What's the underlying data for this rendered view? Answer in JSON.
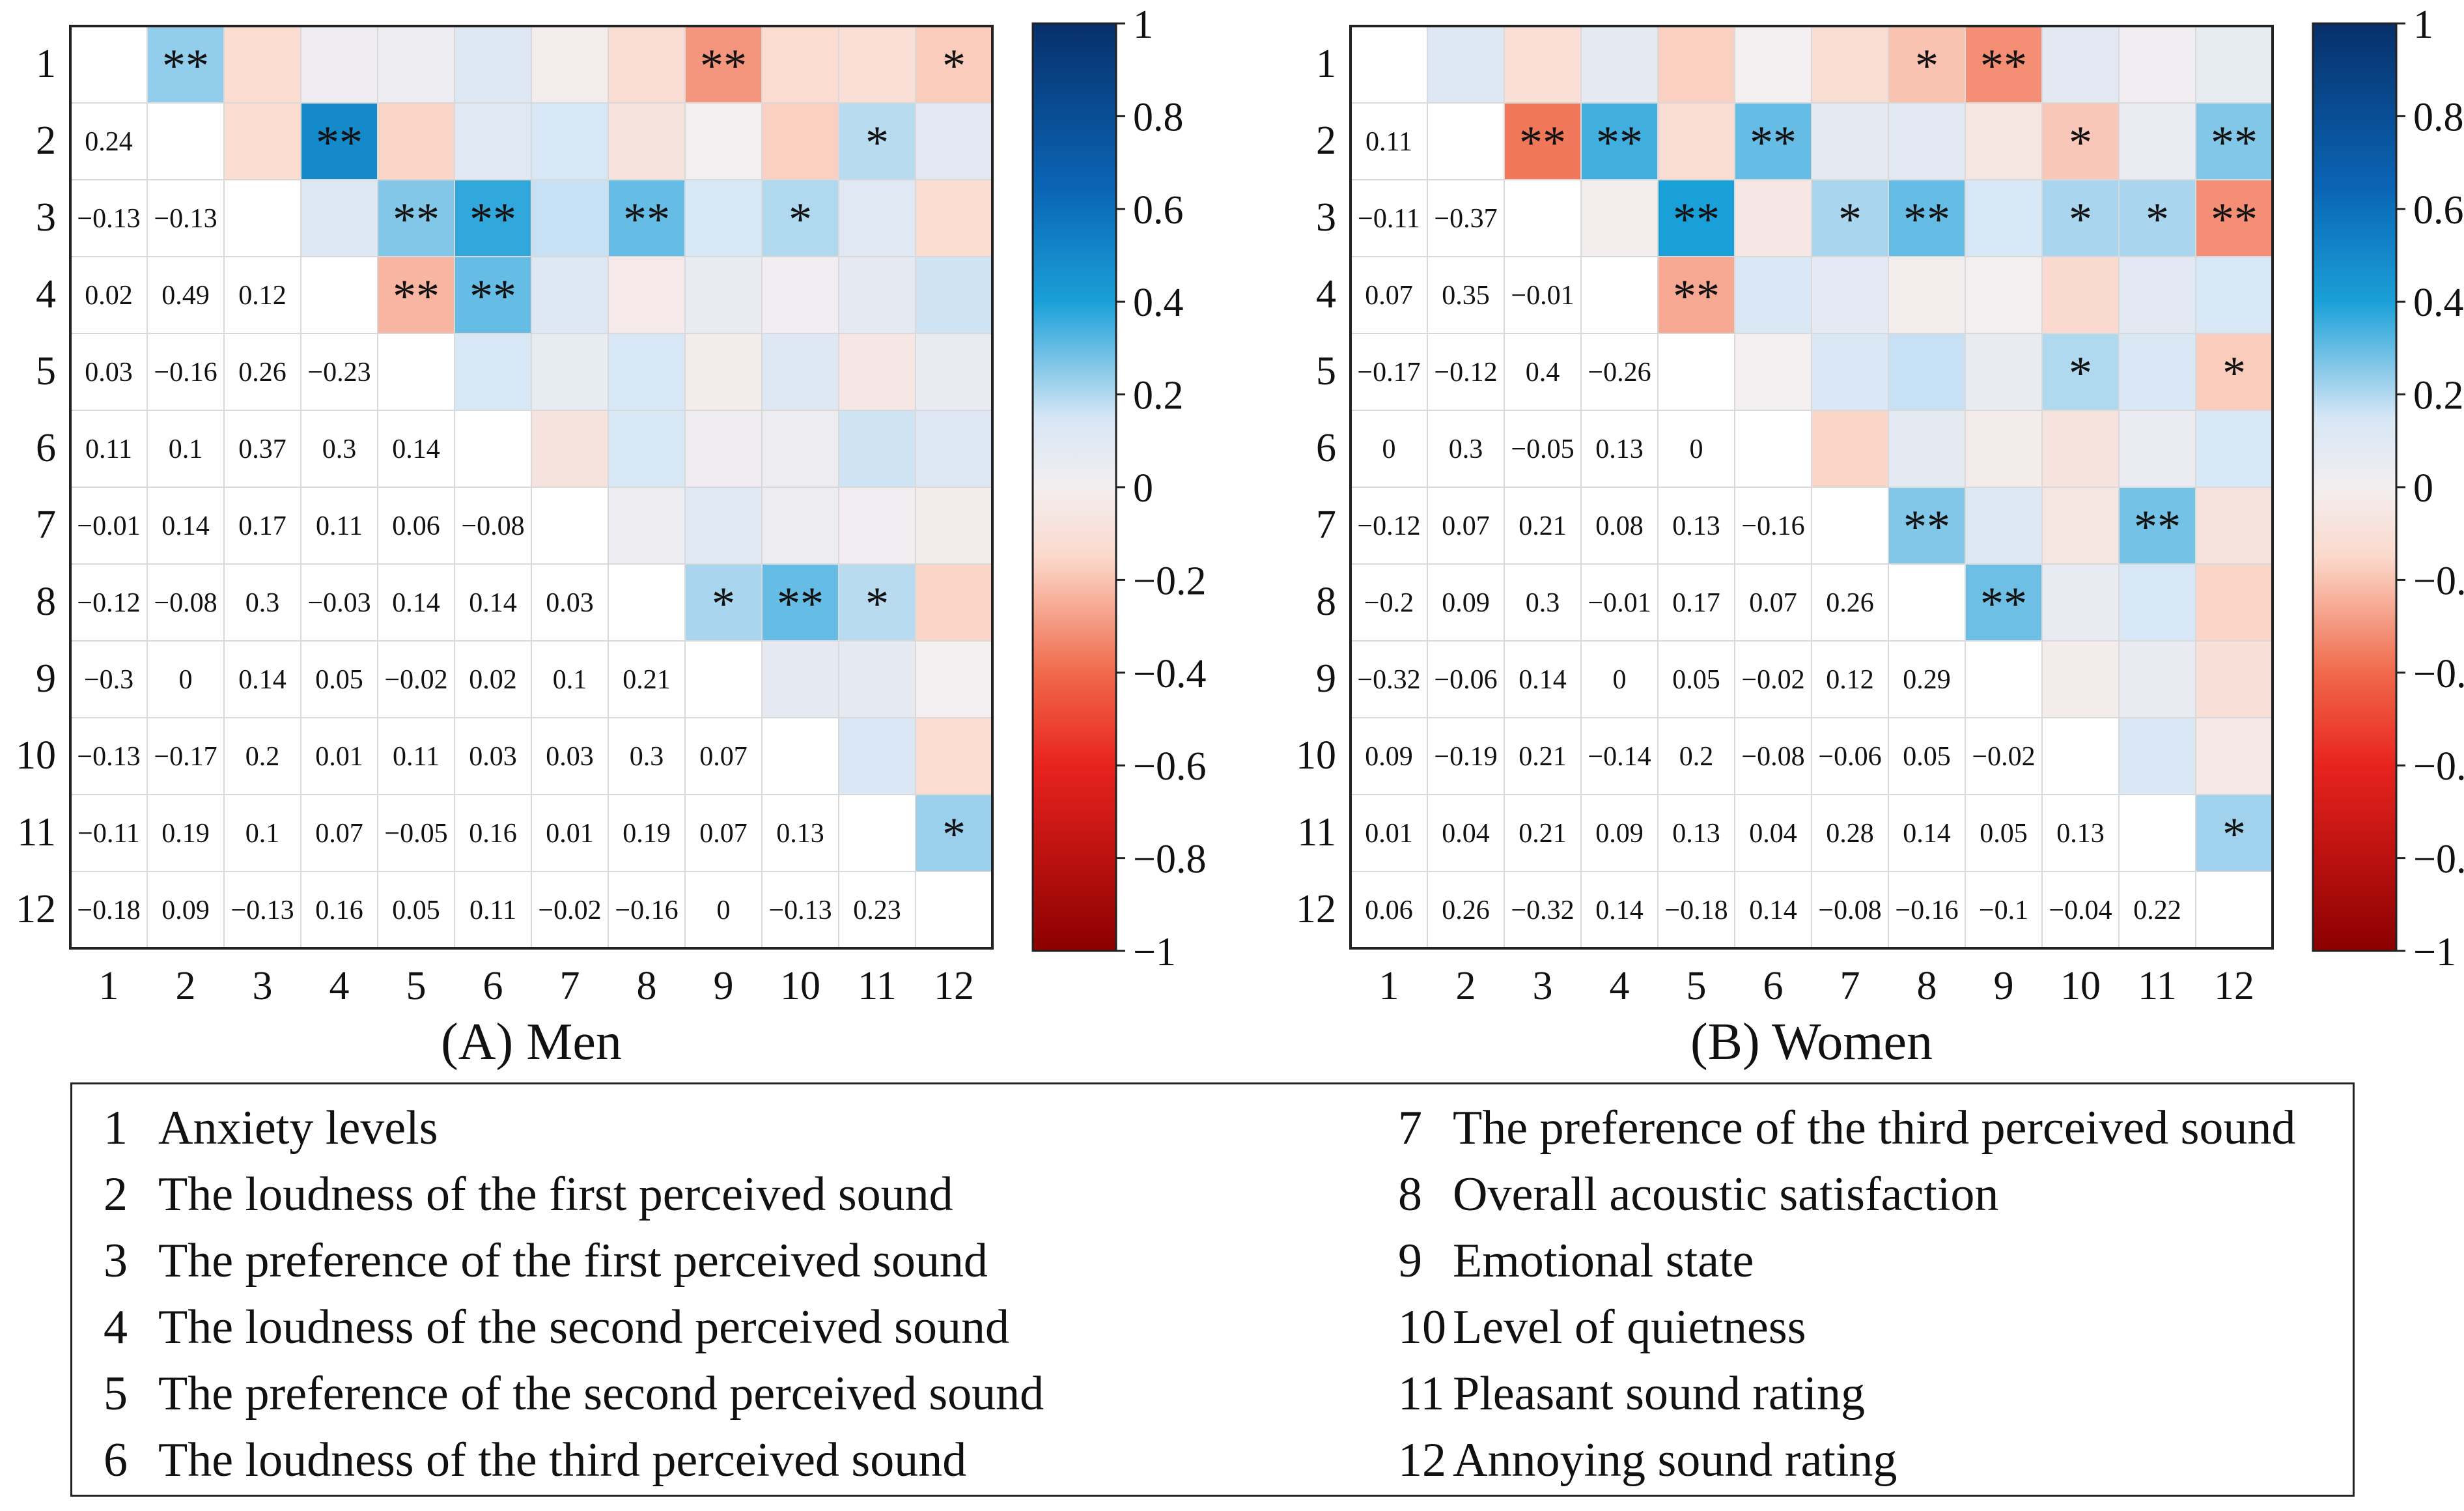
{
  "chart_data": [
    {
      "type": "heatmap",
      "title": "(A) Men",
      "labels": [
        "1",
        "2",
        "3",
        "4",
        "5",
        "6",
        "7",
        "8",
        "9",
        "10",
        "11",
        "12"
      ],
      "lower_triangle_values": [
        [],
        [
          "0.24"
        ],
        [
          "−0.13",
          "−0.13"
        ],
        [
          "0.02",
          "0.49",
          "0.12"
        ],
        [
          "0.03",
          "−0.16",
          "0.26",
          "−0.23"
        ],
        [
          "0.11",
          "0.1",
          "0.37",
          "0.3",
          "0.14"
        ],
        [
          "−0.01",
          "0.14",
          "0.17",
          "0.11",
          "0.06",
          "−0.08"
        ],
        [
          "−0.12",
          "−0.08",
          "0.3",
          "−0.03",
          "0.14",
          "0.14",
          "0.03"
        ],
        [
          "−0.3",
          "0",
          "0.14",
          "0.05",
          "−0.02",
          "0.02",
          "0.1",
          "0.21"
        ],
        [
          "−0.13",
          "−0.17",
          "0.2",
          "0.01",
          "0.11",
          "0.03",
          "0.03",
          "0.3",
          "0.07"
        ],
        [
          "−0.11",
          "0.19",
          "0.1",
          "0.07",
          "−0.05",
          "0.16",
          "0.01",
          "0.19",
          "0.07",
          "0.13"
        ],
        [
          "−0.18",
          "0.09",
          "−0.13",
          "0.16",
          "0.05",
          "0.11",
          "−0.02",
          "−0.16",
          "0",
          "−0.13",
          "0.23"
        ]
      ],
      "significance_upper": [
        [
          "",
          "**",
          "",
          "",
          "",
          "",
          "",
          "",
          "**",
          "",
          "",
          "*"
        ],
        [
          "",
          "",
          "",
          "**",
          "",
          "",
          "",
          "",
          "",
          "",
          "*",
          ""
        ],
        [
          "",
          "",
          "",
          "",
          "**",
          "**",
          "",
          "**",
          "",
          "*",
          "",
          ""
        ],
        [
          "",
          "",
          "",
          "",
          "**",
          "**",
          "",
          "",
          "",
          "",
          "",
          ""
        ],
        [
          "",
          "",
          "",
          "",
          "",
          "",
          "",
          "",
          "",
          "",
          "",
          ""
        ],
        [
          "",
          "",
          "",
          "",
          "",
          "",
          "",
          "",
          "",
          "",
          "",
          ""
        ],
        [
          "",
          "",
          "",
          "",
          "",
          "",
          "",
          "",
          "",
          "",
          "",
          ""
        ],
        [
          "",
          "",
          "",
          "",
          "",
          "",
          "",
          "",
          "*",
          "**",
          "*",
          ""
        ],
        [
          "",
          "",
          "",
          "",
          "",
          "",
          "",
          "",
          "",
          "",
          "",
          ""
        ],
        [
          "",
          "",
          "",
          "",
          "",
          "",
          "",
          "",
          "",
          "",
          "",
          ""
        ],
        [
          "",
          "",
          "",
          "",
          "",
          "",
          "",
          "",
          "",
          "",
          "",
          "*"
        ],
        [
          "",
          "",
          "",
          "",
          "",
          "",
          "",
          "",
          "",
          "",
          "",
          ""
        ]
      ]
    },
    {
      "type": "heatmap",
      "title": "(B) Women",
      "labels": [
        "1",
        "2",
        "3",
        "4",
        "5",
        "6",
        "7",
        "8",
        "9",
        "10",
        "11",
        "12"
      ],
      "lower_triangle_values": [
        [],
        [
          "0.11"
        ],
        [
          "−0.11",
          "−0.37"
        ],
        [
          "0.07",
          "0.35",
          "−0.01"
        ],
        [
          "−0.17",
          "−0.12",
          "0.4",
          "−0.26"
        ],
        [
          "0",
          "0.3",
          "−0.05",
          "0.13",
          "0"
        ],
        [
          "−0.12",
          "0.07",
          "0.21",
          "0.08",
          "0.13",
          "−0.16"
        ],
        [
          "−0.2",
          "0.09",
          "0.3",
          "−0.01",
          "0.17",
          "0.07",
          "0.26"
        ],
        [
          "−0.32",
          "−0.06",
          "0.14",
          "0",
          "0.05",
          "−0.02",
          "0.12",
          "0.29"
        ],
        [
          "0.09",
          "−0.19",
          "0.21",
          "−0.14",
          "0.2",
          "−0.08",
          "−0.06",
          "0.05",
          "−0.02"
        ],
        [
          "0.01",
          "0.04",
          "0.21",
          "0.09",
          "0.13",
          "0.04",
          "0.28",
          "0.14",
          "0.05",
          "0.13"
        ],
        [
          "0.06",
          "0.26",
          "−0.32",
          "0.14",
          "−0.18",
          "0.14",
          "−0.08",
          "−0.16",
          "−0.1",
          "−0.04",
          "0.22"
        ]
      ],
      "significance_upper": [
        [
          "",
          "",
          "",
          "",
          "",
          "",
          "",
          "*",
          "**",
          "",
          "",
          ""
        ],
        [
          "",
          "",
          "**",
          "**",
          "",
          "**",
          "",
          "",
          "",
          "*",
          "",
          "**"
        ],
        [
          "",
          "",
          "",
          "",
          "**",
          "",
          "*",
          "**",
          "",
          "*",
          "*",
          "**"
        ],
        [
          "",
          "",
          "",
          "",
          "**",
          "",
          "",
          "",
          "",
          "",
          "",
          ""
        ],
        [
          "",
          "",
          "",
          "",
          "",
          "",
          "",
          "",
          "",
          "*",
          "",
          "*"
        ],
        [
          "",
          "",
          "",
          "",
          "",
          "",
          "",
          "",
          "",
          "",
          "",
          ""
        ],
        [
          "",
          "",
          "",
          "",
          "",
          "",
          "",
          "**",
          "",
          "",
          "**",
          ""
        ],
        [
          "",
          "",
          "",
          "",
          "",
          "",
          "",
          "",
          "**",
          "",
          "",
          ""
        ],
        [
          "",
          "",
          "",
          "",
          "",
          "",
          "",
          "",
          "",
          "",
          "",
          ""
        ],
        [
          "",
          "",
          "",
          "",
          "",
          "",
          "",
          "",
          "",
          "",
          "",
          ""
        ],
        [
          "",
          "",
          "",
          "",
          "",
          "",
          "",
          "",
          "",
          "",
          "",
          "*"
        ],
        [
          "",
          "",
          "",
          "",
          "",
          "",
          "",
          "",
          "",
          "",
          "",
          ""
        ]
      ]
    }
  ],
  "colorbar": {
    "ticks": [
      "1",
      "0.8",
      "0.6",
      "0.4",
      "0.2",
      "0",
      "−0.2",
      "−0.4",
      "−0.6",
      "−0.8",
      "−1"
    ],
    "range": [
      -1,
      1
    ]
  },
  "colors": {
    "strong_positive": "#08306b",
    "positive": "#1aa0d8",
    "light_positive": "#d6e6f5",
    "neutral": "#f3eef0",
    "light_negative": "#fbd9cc",
    "negative": "#f06a4a",
    "strong_negative": "#8b0000"
  },
  "legend": [
    {
      "num": "1",
      "label": "Anxiety levels"
    },
    {
      "num": "2",
      "label": "The loudness of the first perceived sound"
    },
    {
      "num": "3",
      "label": "The preference of the first perceived sound"
    },
    {
      "num": "4",
      "label": "The loudness of the second perceived sound"
    },
    {
      "num": "5",
      "label": "The preference of the second perceived sound"
    },
    {
      "num": "6",
      "label": "The loudness of the third perceived sound"
    },
    {
      "num": "7",
      "label": "The preference of the third perceived sound"
    },
    {
      "num": "8",
      "label": "Overall acoustic satisfaction"
    },
    {
      "num": "9",
      "label": "Emotional state"
    },
    {
      "num": "10",
      "label": "Level of quietness"
    },
    {
      "num": "11",
      "label": "Pleasant sound rating"
    },
    {
      "num": "12",
      "label": "Annoying sound rating"
    }
  ]
}
